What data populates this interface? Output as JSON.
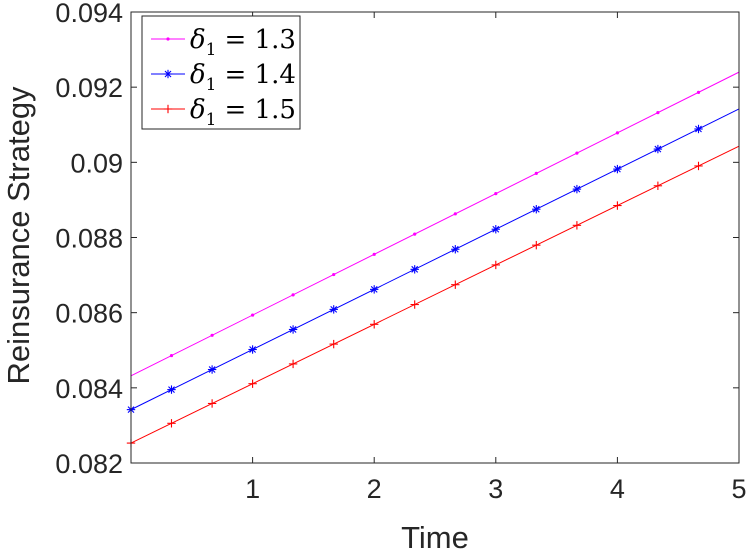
{
  "chart_data": {
    "type": "line",
    "xlabel": "Time",
    "ylabel": "Reinsurance Strategy",
    "xlim": [
      0,
      5
    ],
    "ylim": [
      0.082,
      0.094
    ],
    "xticks": [
      1,
      2,
      3,
      4,
      5
    ],
    "xtick_labels": [
      "1",
      "2",
      "3",
      "4",
      "5"
    ],
    "yticks": [
      0.082,
      0.084,
      0.086,
      0.088,
      0.09,
      0.092,
      0.094
    ],
    "ytick_labels": [
      "0.082",
      "0.084",
      "0.086",
      "0.088",
      "0.09",
      "0.092",
      "0.094"
    ],
    "grid": false,
    "legend_position": "top-left",
    "series": [
      {
        "name": "δ₁ = 1.3",
        "legend_base": "δ",
        "legend_sub": "1",
        "legend_value": "= 1.3",
        "color": "#ff00ff",
        "marker": "dot",
        "x": [
          0,
          5
        ],
        "y": [
          0.08432,
          0.0924
        ],
        "marker_x": [
          0.333,
          0.667,
          1.0,
          1.333,
          1.667,
          2.0,
          2.333,
          2.667,
          3.0,
          3.333,
          3.667,
          4.0,
          4.333,
          4.667
        ]
      },
      {
        "name": "δ₁ = 1.4",
        "legend_base": "δ",
        "legend_sub": "1",
        "legend_value": "= 1.4",
        "color": "#0000ff",
        "marker": "asterisk",
        "x": [
          0,
          5
        ],
        "y": [
          0.08342,
          0.09142
        ],
        "marker_x": [
          0.0,
          0.333,
          0.667,
          1.0,
          1.333,
          1.667,
          2.0,
          2.333,
          2.667,
          3.0,
          3.333,
          3.667,
          4.0,
          4.333,
          4.667
        ]
      },
      {
        "name": "δ₁ = 1.5",
        "legend_base": "δ",
        "legend_sub": "1",
        "legend_value": "= 1.5",
        "color": "#ff0000",
        "marker": "plus",
        "x": [
          0,
          5
        ],
        "y": [
          0.08253,
          0.09043
        ],
        "marker_x": [
          0.0,
          0.333,
          0.667,
          1.0,
          1.333,
          1.667,
          2.0,
          2.333,
          2.667,
          3.0,
          3.333,
          3.667,
          4.0,
          4.333,
          4.667
        ]
      }
    ]
  }
}
